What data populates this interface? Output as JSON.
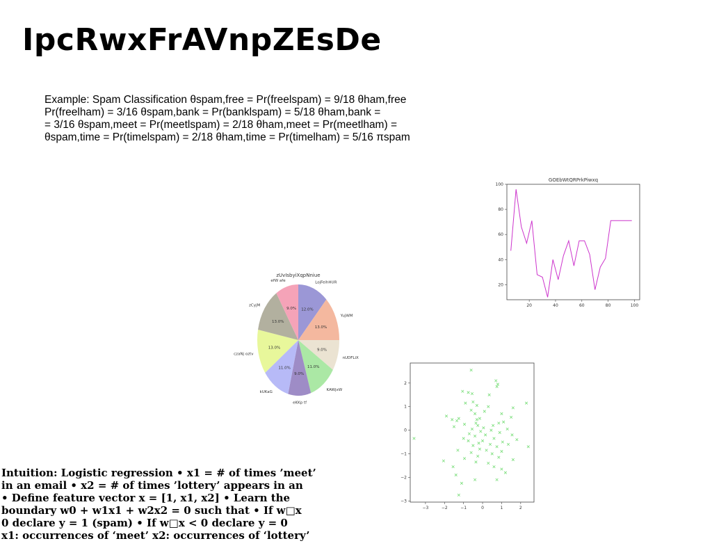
{
  "title": "IpcRwxFrAVnpZEsDe",
  "body_lines": [
    "Example: Spam Classification θspam,free = Pr(freelspam) = 9/18 θham,free",
    "Pr(freelham) = 3/16 θspam,bank = Pr(banklspam) = 5/18 θham,bank =",
    "= 3/16 θspam,meet = Pr(meetlspam) = 2/18 θham,meet = Pr(meetlham) =",
    "θspam,time = Pr(timelspam) = 2/18 θham,time = Pr(timelham) = 5/16 πspam"
  ],
  "intuition_lines": [
    "Intuition: Logistic regression • x1 = # of times ’meet’",
    "in an email • x2 = # of times ’lottery’ appears in an",
    "• Define feature vector x = [1, x1, x2] • Learn the",
    "boundary w0 + w1x1 + w2x2 = 0 such that • If w□x",
    "0 declare y = 1 (spam) • If w□x < 0 declare y = 0",
    "x1: occurrences of ‘meet’ x2: occurrences of ‘lottery’"
  ],
  "chart_data": [
    {
      "type": "line",
      "title": "GOEbWtQRPrkPiwxq",
      "xlabel": "",
      "ylabel": "",
      "xlim": [
        3,
        104
      ],
      "ylim": [
        8,
        100
      ],
      "xticks": [
        20,
        40,
        60,
        80,
        100
      ],
      "yticks": [
        20,
        40,
        60,
        80,
        100
      ],
      "grid": false,
      "color": "#cc33cc",
      "series": [
        {
          "x": [
            6,
            10,
            14,
            18,
            22,
            26,
            30,
            34,
            38,
            42,
            46,
            50,
            54,
            58,
            62,
            66,
            70,
            74,
            78,
            82,
            86,
            90,
            94,
            98
          ],
          "y": [
            47,
            96,
            66,
            53,
            71,
            28,
            26,
            10,
            40,
            24,
            43,
            55,
            35,
            55,
            55,
            44,
            16,
            34,
            41,
            71,
            71,
            71,
            71,
            71
          ]
        }
      ]
    },
    {
      "type": "pie",
      "title": "zUvIsbyiXqpNniue",
      "labels": [
        "LojFeihHUR",
        "YujWM",
        "nUDFLiX",
        "KAWjxW",
        "eKKp tf",
        "kUKaG",
        "czaNj oztv",
        "zCyjM",
        "efW afe"
      ],
      "values": [
        12.0,
        13.0,
        9.0,
        11.0,
        9.0,
        11.0,
        13.0,
        13.0,
        9.0
      ],
      "pct_labels": [
        "12.0%",
        "13.0%",
        "9.0%",
        "11.0%",
        "9.0%",
        "11.0%",
        "13.0%",
        "13.0%",
        "9.0%"
      ],
      "colors": [
        "#9b97d6",
        "#f4b89f",
        "#ebe3d2",
        "#abe8a5",
        "#9e8cc6",
        "#b7baf7",
        "#e8f79b",
        "#b2b09f",
        "#f5a3b8"
      ]
    },
    {
      "type": "scatter",
      "title": "",
      "xlabel": "",
      "ylabel": "",
      "xlim": [
        -3.8,
        2.7
      ],
      "ylim": [
        -3.05,
        2.85
      ],
      "xticks": [
        -3,
        -2,
        -1,
        0,
        1,
        2
      ],
      "yticks": [
        -3,
        -2,
        -1,
        0,
        1,
        2
      ],
      "marker": "x",
      "color": "#77dd77",
      "points": [
        [
          -3.6,
          -0.35
        ],
        [
          -0.6,
          2.55
        ],
        [
          0.7,
          2.1
        ],
        [
          0.8,
          1.95
        ],
        [
          0.75,
          1.85
        ],
        [
          -1.05,
          1.65
        ],
        [
          -0.75,
          1.6
        ],
        [
          -0.55,
          1.55
        ],
        [
          0.35,
          1.5
        ],
        [
          -0.5,
          1.2
        ],
        [
          -0.9,
          1.15
        ],
        [
          2.3,
          1.15
        ],
        [
          -0.3,
          1.05
        ],
        [
          0.3,
          1.0
        ],
        [
          1.6,
          0.95
        ],
        [
          -0.6,
          0.85
        ],
        [
          0.1,
          0.8
        ],
        [
          -0.4,
          0.7
        ],
        [
          1.0,
          0.7
        ],
        [
          -1.9,
          0.6
        ],
        [
          1.5,
          0.55
        ],
        [
          -0.15,
          0.5
        ],
        [
          -1.25,
          0.5
        ],
        [
          -1.6,
          0.45
        ],
        [
          -0.3,
          0.45
        ],
        [
          -1.35,
          0.4
        ],
        [
          1.1,
          0.35
        ],
        [
          -0.35,
          0.3
        ],
        [
          0.85,
          0.3
        ],
        [
          -0.95,
          0.25
        ],
        [
          -0.25,
          0.2
        ],
        [
          0.55,
          0.2
        ],
        [
          -1.5,
          0.15
        ],
        [
          0.05,
          0.1
        ],
        [
          -0.55,
          0.05
        ],
        [
          1.3,
          0.05
        ],
        [
          0.45,
          0.0
        ],
        [
          -0.1,
          -0.05
        ],
        [
          0.9,
          -0.1
        ],
        [
          -0.7,
          -0.15
        ],
        [
          0.15,
          -0.2
        ],
        [
          1.55,
          -0.2
        ],
        [
          -0.4,
          -0.25
        ],
        [
          -1.0,
          -0.35
        ],
        [
          0.6,
          -0.35
        ],
        [
          1.8,
          -0.4
        ],
        [
          -0.75,
          -0.45
        ],
        [
          0.0,
          -0.45
        ],
        [
          1.05,
          -0.5
        ],
        [
          -0.2,
          -0.55
        ],
        [
          0.4,
          -0.6
        ],
        [
          1.35,
          -0.6
        ],
        [
          2.4,
          -0.7
        ],
        [
          -0.5,
          -0.65
        ],
        [
          0.75,
          -0.7
        ],
        [
          -1.3,
          -0.85
        ],
        [
          -0.15,
          -0.8
        ],
        [
          0.2,
          -0.85
        ],
        [
          1.0,
          -0.9
        ],
        [
          -0.6,
          -0.95
        ],
        [
          0.5,
          -1.0
        ],
        [
          -0.25,
          -1.1
        ],
        [
          0.85,
          -1.15
        ],
        [
          -0.95,
          -1.2
        ],
        [
          1.6,
          -1.25
        ],
        [
          -2.05,
          -1.3
        ],
        [
          -0.35,
          -1.35
        ],
        [
          0.3,
          -1.4
        ],
        [
          -1.55,
          -1.55
        ],
        [
          0.6,
          -1.55
        ],
        [
          1.0,
          -1.65
        ],
        [
          1.2,
          -1.8
        ],
        [
          -1.4,
          -1.9
        ],
        [
          -0.4,
          -2.1
        ],
        [
          0.75,
          -2.1
        ],
        [
          -1.1,
          -2.25
        ],
        [
          -1.25,
          -2.75
        ]
      ]
    }
  ]
}
